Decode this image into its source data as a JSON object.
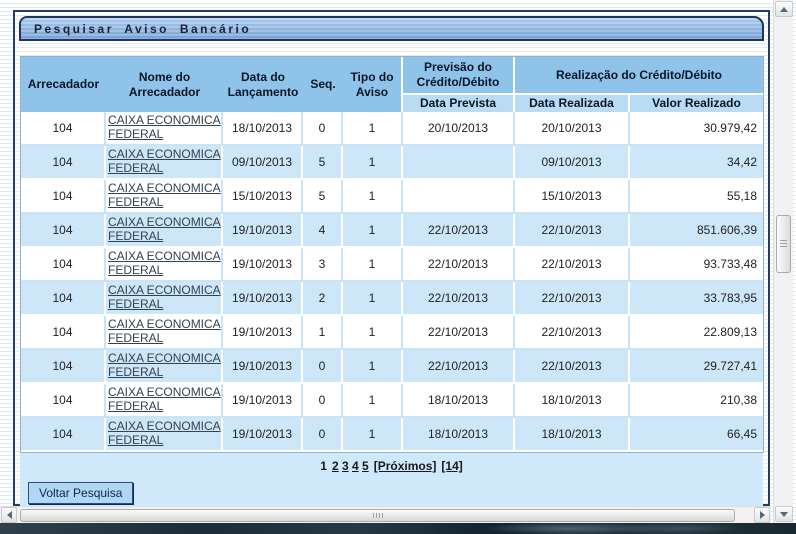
{
  "title": "Pesquisar Aviso Bancário",
  "table": {
    "headers": {
      "arrecadador": "Arrecadador",
      "nome": "Nome do Arrecadador",
      "data_lancamento": "Data do Lançamento",
      "seq": "Seq.",
      "tipo": "Tipo do Aviso",
      "previsao_group": "Previsão do Crédito/Débito",
      "realizacao_group": "Realização do Crédito/Débito",
      "data_prevista": "Data Prevista",
      "data_realizada": "Data Realizada",
      "valor_realizado": "Valor Realizado"
    },
    "rows": [
      {
        "arrecadador": "104",
        "nome": "CAIXA ECONOMICA FEDERAL",
        "data_lancamento": "18/10/2013",
        "seq": "0",
        "tipo": "1",
        "data_prevista": "20/10/2013",
        "data_realizada": "20/10/2013",
        "valor_realizado": "30.979,42"
      },
      {
        "arrecadador": "104",
        "nome": "CAIXA ECONOMICA FEDERAL",
        "data_lancamento": "09/10/2013",
        "seq": "5",
        "tipo": "1",
        "data_prevista": "",
        "data_realizada": "09/10/2013",
        "valor_realizado": "34,42"
      },
      {
        "arrecadador": "104",
        "nome": "CAIXA ECONOMICA FEDERAL",
        "data_lancamento": "15/10/2013",
        "seq": "5",
        "tipo": "1",
        "data_prevista": "",
        "data_realizada": "15/10/2013",
        "valor_realizado": "55,18"
      },
      {
        "arrecadador": "104",
        "nome": "CAIXA ECONOMICA FEDERAL",
        "data_lancamento": "19/10/2013",
        "seq": "4",
        "tipo": "1",
        "data_prevista": "22/10/2013",
        "data_realizada": "22/10/2013",
        "valor_realizado": "851.606,39"
      },
      {
        "arrecadador": "104",
        "nome": "CAIXA ECONOMICA FEDERAL",
        "data_lancamento": "19/10/2013",
        "seq": "3",
        "tipo": "1",
        "data_prevista": "22/10/2013",
        "data_realizada": "22/10/2013",
        "valor_realizado": "93.733,48"
      },
      {
        "arrecadador": "104",
        "nome": "CAIXA ECONOMICA FEDERAL",
        "data_lancamento": "19/10/2013",
        "seq": "2",
        "tipo": "1",
        "data_prevista": "22/10/2013",
        "data_realizada": "22/10/2013",
        "valor_realizado": "33.783,95"
      },
      {
        "arrecadador": "104",
        "nome": "CAIXA ECONOMICA FEDERAL",
        "data_lancamento": "19/10/2013",
        "seq": "1",
        "tipo": "1",
        "data_prevista": "22/10/2013",
        "data_realizada": "22/10/2013",
        "valor_realizado": "22.809,13"
      },
      {
        "arrecadador": "104",
        "nome": "CAIXA ECONOMICA FEDERAL",
        "data_lancamento": "19/10/2013",
        "seq": "0",
        "tipo": "1",
        "data_prevista": "22/10/2013",
        "data_realizada": "22/10/2013",
        "valor_realizado": "29.727,41"
      },
      {
        "arrecadador": "104",
        "nome": "CAIXA ECONOMICA FEDERAL",
        "data_lancamento": "19/10/2013",
        "seq": "0",
        "tipo": "1",
        "data_prevista": "18/10/2013",
        "data_realizada": "18/10/2013",
        "valor_realizado": "210,38"
      },
      {
        "arrecadador": "104",
        "nome": "CAIXA ECONOMICA FEDERAL",
        "data_lancamento": "19/10/2013",
        "seq": "0",
        "tipo": "1",
        "data_prevista": "18/10/2013",
        "data_realizada": "18/10/2013",
        "valor_realizado": "66,45"
      }
    ]
  },
  "pagination": {
    "current": "1",
    "pages": [
      "2",
      "3",
      "4",
      "5"
    ],
    "proximos": "[Próximos]",
    "last": "[14]"
  },
  "actions": {
    "voltar": "Voltar Pesquisa"
  },
  "colors": {
    "header_bg": "#8fc3ea",
    "subheader_bg": "#b9dcf4",
    "row_alt_bg": "#cde7f9",
    "panel_border": "#2b3c63",
    "footer_bg": "#cfe8fa"
  }
}
